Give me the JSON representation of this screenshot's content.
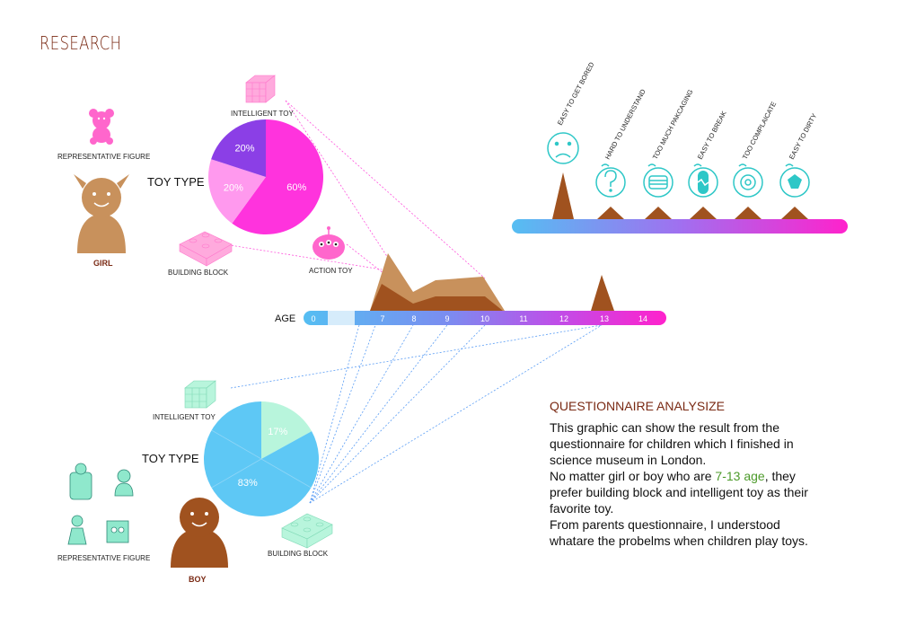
{
  "heading": "RESEARCH",
  "girl": {
    "label": "GIRL",
    "representative_figure": "REPRESENTATIVE FIGURE",
    "toy_type": "TOY TYPE",
    "categories": {
      "intelligent": "INTELLIGENT TOY",
      "building": "BUILDING BLOCK",
      "action": "ACTION TOY"
    }
  },
  "boy": {
    "label": "BOY",
    "representative_figure": "REPRESENTATIVE FIGURE",
    "toy_type": "TOY TYPE",
    "categories": {
      "intelligent": "INTELLIGENT TOY",
      "building": "BUILDING BLOCK"
    }
  },
  "age_axis": {
    "label": "AGE"
  },
  "questionnaire": {
    "title": "QUESTIONNAIRE ANALYSIZE",
    "line1": "This graphic can show the result from  the questionnaire for children which I  finished in science museum in London.",
    "line2_before": "No matter girl or boy who are ",
    "line2_highlight": "7-13 age",
    "line2_after": ", they prefer building block and intelligent toy  as their favorite toy.",
    "line3": "From parents questionnaire,  I understood whatare the probelms when  children  play toys."
  },
  "colors": {
    "heading": "#7a2a14",
    "girl_main": "#ff33dd",
    "girl_violet": "#8b3fe6",
    "girl_light": "#ff99ee",
    "boy_main": "#5ec8f5",
    "boy_mint": "#b8f5dc",
    "peak_brown": "#a0521f",
    "peak_tan": "#c8915c",
    "gradient_start": "#55bef2",
    "gradient_end": "#ff22cc",
    "highlight": "#4c9a2a"
  },
  "chart_data": [
    {
      "type": "pie",
      "name": "girl",
      "title": "TOY TYPE",
      "slices": [
        {
          "label": "60%",
          "value": 60
        },
        {
          "label": "20%",
          "value": 20
        },
        {
          "label": "20%",
          "value": 20
        }
      ]
    },
    {
      "type": "pie",
      "name": "boy",
      "title": "TOY TYPE",
      "slices": [
        {
          "label": "17%",
          "value": 17
        },
        {
          "label": "83%",
          "value": 83
        }
      ]
    },
    {
      "type": "area",
      "name": "age_distribution",
      "xlabel": "AGE",
      "x": [
        "0",
        "7",
        "8",
        "9",
        "10",
        "11",
        "12",
        "13",
        "14"
      ]
    },
    {
      "type": "bar",
      "name": "problems",
      "categories": [
        "EASY TO GET BORED",
        "HARD TO UNDERSTAND",
        "TOO MUCH PAKCAGING",
        "EASY TO BREAK",
        "TOO COMPLAICATE",
        "EASY TO DIRTY"
      ],
      "values": [
        5,
        1,
        1,
        1,
        1,
        1
      ]
    }
  ]
}
